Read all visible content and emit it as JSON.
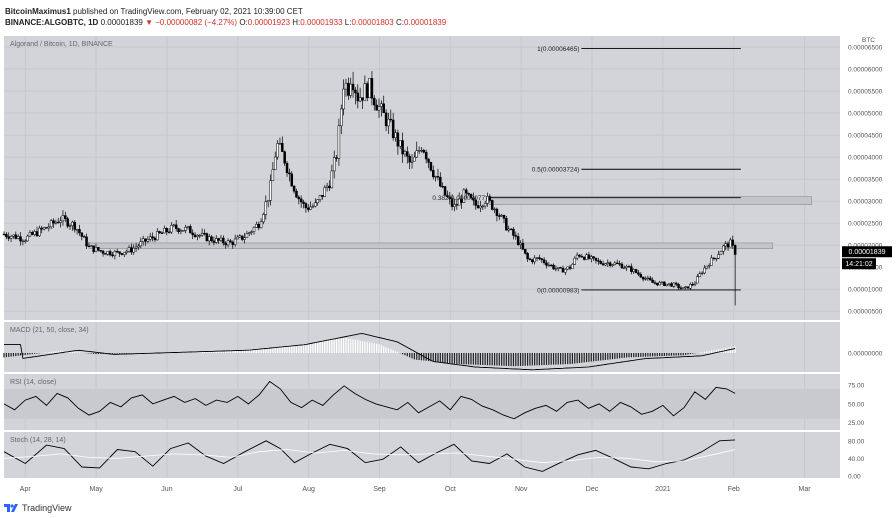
{
  "header": {
    "author": "BitcoinMaximus1",
    "published": "published on TradingView.com, February 02, 2021 10:39:00 CET",
    "symbol": "BINANCE:ALGOBTC, 1D",
    "last": "0.00001839",
    "change": "−0.00000082 (−4.27%)",
    "o_label": "O:",
    "o": "0.00001923",
    "h_label": "H:",
    "h": "0.00001933",
    "l_label": "L:",
    "l": "0.00001803",
    "c_label": "C:",
    "c": "0.00001839"
  },
  "footer": {
    "brand": "TradingView"
  },
  "colors": {
    "panel_bg": "#d2d4d9",
    "candle": "#000000",
    "accent_red": "#d0302a",
    "fib_line": "#000000"
  },
  "chart_data": [
    {
      "type": "candlestick",
      "title": "Algorand / Bitcoin, 1D, BINANCE",
      "unit_label": "BTC",
      "y_ticks": [
        "0.00006500",
        "0.00006000",
        "0.00005500",
        "0.00005000",
        "0.00004500",
        "0.00004000",
        "0.00003500",
        "0.00003000",
        "0.00002500",
        "0.00002000",
        "0.00001500",
        "0.00001000",
        "0.00000500"
      ],
      "ylim": [
        3e-06,
        6.75e-05
      ],
      "x_ticks": [
        "Apr",
        "May",
        "Jun",
        "Jul",
        "Aug",
        "Sep",
        "Oct",
        "Nov",
        "Dec",
        "2021",
        "Feb",
        "Mar"
      ],
      "x_tick_pos": [
        0.5,
        1.5,
        2.5,
        3.5,
        4.5,
        5.5,
        6.5,
        7.5,
        8.5,
        9.5,
        10.5,
        11.5
      ],
      "xlim": [
        0.2,
        12.0
      ],
      "close_path": [
        [
          0.2,
          2.25e-05
        ],
        [
          0.5,
          2.15e-05
        ],
        [
          0.8,
          2.4e-05
        ],
        [
          1.0,
          2.6e-05
        ],
        [
          1.2,
          2.45e-05
        ],
        [
          1.4,
          1.95e-05
        ],
        [
          1.6,
          1.85e-05
        ],
        [
          1.8,
          1.82e-05
        ],
        [
          2.0,
          1.9e-05
        ],
        [
          2.2,
          2.1e-05
        ],
        [
          2.4,
          2.25e-05
        ],
        [
          2.6,
          2.4e-05
        ],
        [
          2.8,
          2.35e-05
        ],
        [
          3.0,
          2.2e-05
        ],
        [
          3.2,
          2.1e-05
        ],
        [
          3.4,
          2.05e-05
        ],
        [
          3.6,
          2.2e-05
        ],
        [
          3.8,
          2.5e-05
        ],
        [
          3.95,
          3.2e-05
        ],
        [
          4.05,
          4.3e-05
        ],
        [
          4.15,
          4e-05
        ],
        [
          4.25,
          3.5e-05
        ],
        [
          4.35,
          3.1e-05
        ],
        [
          4.45,
          2.85e-05
        ],
        [
          4.6,
          2.9e-05
        ],
        [
          4.8,
          3.45e-05
        ],
        [
          4.9,
          4.1e-05
        ],
        [
          5.0,
          5.8e-05
        ],
        [
          5.05,
          5.5e-05
        ],
        [
          5.1,
          5.9e-05
        ],
        [
          5.2,
          5.35e-05
        ],
        [
          5.35,
          5.6e-05
        ],
        [
          5.5,
          5.1e-05
        ],
        [
          5.65,
          4.7e-05
        ],
        [
          5.8,
          4.2e-05
        ],
        [
          5.95,
          3.8e-05
        ],
        [
          6.1,
          4.3e-05
        ],
        [
          6.25,
          3.7e-05
        ],
        [
          6.4,
          3.2e-05
        ],
        [
          6.55,
          2.85e-05
        ],
        [
          6.7,
          3.15e-05
        ],
        [
          6.85,
          2.9e-05
        ],
        [
          7.0,
          3.05e-05
        ],
        [
          7.15,
          2.8e-05
        ],
        [
          7.3,
          2.4e-05
        ],
        [
          7.45,
          2.1e-05
        ],
        [
          7.6,
          1.65e-05
        ],
        [
          7.75,
          1.7e-05
        ],
        [
          7.9,
          1.55e-05
        ],
        [
          8.05,
          1.42e-05
        ],
        [
          8.2,
          1.5e-05
        ],
        [
          8.3,
          1.8e-05
        ],
        [
          8.45,
          1.7e-05
        ],
        [
          8.6,
          1.6e-05
        ],
        [
          8.75,
          1.6e-05
        ],
        [
          8.9,
          1.55e-05
        ],
        [
          9.05,
          1.45e-05
        ],
        [
          9.2,
          1.3e-05
        ],
        [
          9.35,
          1.15e-05
        ],
        [
          9.5,
          1.12e-05
        ],
        [
          9.65,
          1.1e-05
        ],
        [
          9.8,
          1e-05
        ],
        [
          9.95,
          1.15e-05
        ],
        [
          10.05,
          1.4e-05
        ],
        [
          10.15,
          1.6e-05
        ],
        [
          10.25,
          1.75e-05
        ],
        [
          10.35,
          1.95e-05
        ],
        [
          10.45,
          2.05e-05
        ],
        [
          10.52,
          1.84e-05
        ]
      ],
      "last_candle_low": 6.3e-06,
      "fib_levels": [
        {
          "label": "1(0.00006465)",
          "value": 6.465e-05,
          "x_start": 8.35,
          "x_end": 10.6
        },
        {
          "label": "0.5(0.00003724)",
          "value": 3.724e-05,
          "x_start": 8.35,
          "x_end": 10.6
        },
        {
          "label": "0.382(0.00003077)",
          "value": 3.077e-05,
          "x_start": 7.05,
          "x_end": 10.6
        },
        {
          "label": "0(0.00000983)",
          "value": 9.83e-06,
          "x_start": 8.35,
          "x_end": 10.6
        }
      ],
      "zones": [
        {
          "low": 2.92e-05,
          "high": 3.1e-05,
          "x_start": 7.05,
          "x_end": 11.6
        },
        {
          "low": 1.92e-05,
          "high": 2.05e-05,
          "x_start": 1.4,
          "x_end": 11.05
        }
      ],
      "last_price_label": "0.00001839",
      "countdown_label": "14:21:02"
    },
    {
      "type": "histogram",
      "title": "MACD (21, 50, close, 34)",
      "y_ticks": [
        "0.00000000"
      ]
    },
    {
      "type": "line",
      "title": "RSI (14, close)",
      "y_ticks": [
        "75.00",
        "50.00",
        "25.00"
      ],
      "ylim": [
        15,
        90
      ],
      "band": [
        30,
        70
      ],
      "x": [
        0.2,
        0.35,
        0.5,
        0.65,
        0.8,
        0.95,
        1.1,
        1.25,
        1.4,
        1.55,
        1.7,
        1.85,
        2.0,
        2.15,
        2.3,
        2.45,
        2.6,
        2.75,
        2.9,
        3.05,
        3.2,
        3.35,
        3.5,
        3.65,
        3.8,
        3.95,
        4.1,
        4.25,
        4.4,
        4.55,
        4.7,
        4.85,
        5.0,
        5.15,
        5.3,
        5.45,
        5.6,
        5.75,
        5.9,
        6.05,
        6.2,
        6.35,
        6.5,
        6.65,
        6.8,
        6.95,
        7.1,
        7.25,
        7.4,
        7.55,
        7.7,
        7.85,
        8.0,
        8.15,
        8.3,
        8.45,
        8.6,
        8.75,
        8.9,
        9.05,
        9.2,
        9.35,
        9.5,
        9.65,
        9.8,
        9.95,
        10.1,
        10.25,
        10.4,
        10.52
      ],
      "values": [
        50,
        42,
        55,
        60,
        48,
        64,
        58,
        44,
        35,
        40,
        52,
        46,
        58,
        62,
        50,
        55,
        60,
        52,
        57,
        48,
        55,
        52,
        60,
        50,
        62,
        80,
        70,
        52,
        45,
        55,
        48,
        62,
        74,
        64,
        56,
        50,
        46,
        42,
        52,
        38,
        46,
        54,
        42,
        60,
        56,
        47,
        42,
        35,
        30,
        38,
        44,
        48,
        40,
        52,
        55,
        44,
        50,
        40,
        52,
        46,
        36,
        40,
        48,
        34,
        45,
        66,
        56,
        72,
        70,
        64
      ]
    },
    {
      "type": "line",
      "title": "Stoch (14, 28, 14)",
      "y_ticks": [
        "80.00",
        "40.00",
        "0.00"
      ],
      "ylim": [
        -5,
        100
      ],
      "series": [
        {
          "x": [
            0.2,
            0.5,
            0.8,
            1.05,
            1.3,
            1.55,
            1.8,
            2.05,
            2.3,
            2.55,
            2.8,
            3.05,
            3.3,
            3.6,
            3.9,
            4.1,
            4.3,
            4.55,
            4.8,
            5.05,
            5.3,
            5.55,
            5.8,
            6.05,
            6.3,
            6.55,
            6.8,
            7.05,
            7.3,
            7.55,
            7.8,
            8.05,
            8.3,
            8.55,
            8.8,
            9.05,
            9.3,
            9.55,
            9.8,
            10.05,
            10.3,
            10.52
          ],
          "values": [
            55,
            28,
            70,
            62,
            20,
            18,
            60,
            55,
            22,
            62,
            75,
            45,
            28,
            55,
            80,
            62,
            30,
            52,
            72,
            62,
            30,
            38,
            66,
            30,
            52,
            72,
            34,
            28,
            50,
            20,
            10,
            30,
            48,
            58,
            40,
            20,
            16,
            28,
            36,
            55,
            80,
            82
          ]
        },
        {
          "x": [
            0.2,
            0.6,
            1.0,
            1.4,
            1.8,
            2.2,
            2.6,
            3.0,
            3.4,
            3.8,
            4.2,
            4.6,
            5.0,
            5.4,
            5.8,
            6.2,
            6.6,
            7.0,
            7.4,
            7.8,
            8.2,
            8.6,
            9.0,
            9.4,
            9.8,
            10.2,
            10.52
          ],
          "values": [
            40,
            44,
            50,
            42,
            40,
            45,
            50,
            48,
            42,
            55,
            60,
            52,
            58,
            50,
            48,
            50,
            52,
            45,
            38,
            30,
            35,
            42,
            40,
            32,
            34,
            48,
            60
          ]
        }
      ]
    }
  ]
}
